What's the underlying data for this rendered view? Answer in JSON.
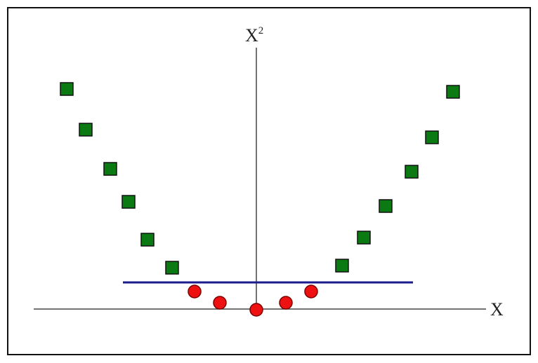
{
  "x_axis": {
    "label": "X"
  },
  "y_axis": {
    "label": "X",
    "superscript": "2"
  }
}
